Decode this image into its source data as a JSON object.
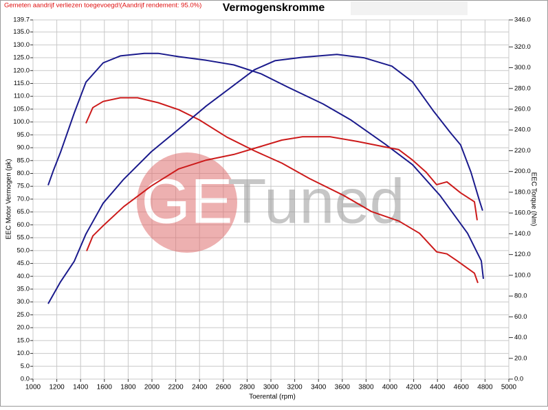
{
  "chart_data": {
    "type": "line",
    "note": "Gemeten aandrijf verliezen toegevoegd!(Aandrijf rendement: 95.0%)",
    "title": "Vermogenskromme",
    "x_label": "Toerental (rpm)",
    "y_label": "EEC Motor Vermogen (pk)",
    "y2_label": "EEC Torque (Nm)",
    "watermark": {
      "circle_text": "GE",
      "text": "Tuned"
    },
    "grid": true,
    "xlim": [
      1000,
      5000
    ],
    "xticks": [
      1000,
      1200,
      1400,
      1600,
      1800,
      2000,
      2200,
      2400,
      2600,
      2800,
      3000,
      3200,
      3400,
      3600,
      3800,
      4000,
      4200,
      4400,
      4600,
      4800,
      5000
    ],
    "ylim": [
      0,
      139.7
    ],
    "yticks": [
      {
        "value": 0,
        "label": "0.0"
      },
      {
        "value": 5,
        "label": "5.0"
      },
      {
        "value": 10,
        "label": "10.0"
      },
      {
        "value": 15,
        "label": "15.0"
      },
      {
        "value": 20,
        "label": "20.0"
      },
      {
        "value": 25,
        "label": "25.0"
      },
      {
        "value": 30,
        "label": "30.0"
      },
      {
        "value": 35,
        "label": "35.0"
      },
      {
        "value": 40,
        "label": "40.0"
      },
      {
        "value": 45,
        "label": "45.0"
      },
      {
        "value": 50,
        "label": "50.0"
      },
      {
        "value": 55,
        "label": "55.0"
      },
      {
        "value": 60,
        "label": "60.0"
      },
      {
        "value": 65,
        "label": "65.0"
      },
      {
        "value": 70,
        "label": "70.0"
      },
      {
        "value": 75,
        "label": "75.0"
      },
      {
        "value": 80,
        "label": "80.0"
      },
      {
        "value": 85,
        "label": "85.0"
      },
      {
        "value": 90,
        "label": "90.0"
      },
      {
        "value": 95,
        "label": "95.0"
      },
      {
        "value": 100,
        "label": "100.0"
      },
      {
        "value": 105,
        "label": "105.0"
      },
      {
        "value": 110,
        "label": "110.0"
      },
      {
        "value": 115,
        "label": "115.0"
      },
      {
        "value": 120,
        "label": "120.0"
      },
      {
        "value": 125,
        "label": "125.0"
      },
      {
        "value": 130,
        "label": "130.0"
      },
      {
        "value": 135,
        "label": "135.0"
      },
      139.7
    ],
    "y2lim": [
      0,
      346
    ],
    "y2ticks": [
      {
        "value": 0,
        "label": "0.0"
      },
      {
        "value": 20,
        "label": "20.0"
      },
      {
        "value": 40,
        "label": "40.0"
      },
      {
        "value": 60,
        "label": "60.0"
      },
      {
        "value": 80,
        "label": "80.0"
      },
      {
        "value": 100,
        "label": "100.0"
      },
      {
        "value": 120,
        "label": "120.0"
      },
      {
        "value": 140,
        "label": "140.0"
      },
      {
        "value": 160,
        "label": "160.0"
      },
      {
        "value": 180,
        "label": "180.0"
      },
      {
        "value": 200,
        "label": "200.0"
      },
      {
        "value": 220,
        "label": "220.0"
      },
      {
        "value": 240,
        "label": "240.0"
      },
      {
        "value": 260,
        "label": "260.0"
      },
      {
        "value": 280,
        "label": "280.0"
      },
      {
        "value": 300,
        "label": "300.0"
      },
      {
        "value": 320,
        "label": "320.0"
      },
      {
        "value": 346,
        "label": "346.0"
      }
    ],
    "series": [
      {
        "color": "#1a1a8c",
        "x": [
          1127,
          1173,
          1231,
          1347,
          1445,
          1590,
          1734,
          1936,
          2052,
          2225,
          2457,
          2688,
          2919,
          3150,
          3439,
          3671,
          3960,
          4191,
          4422,
          4653,
          4769,
          4786
        ],
        "values": [
          75.4,
          81.3,
          88.2,
          103.5,
          115.5,
          123,
          125.7,
          126.7,
          126.7,
          125.4,
          124,
          122.2,
          118.7,
          113.4,
          107,
          100.8,
          91.4,
          83.4,
          71.4,
          56.7,
          46,
          39
        ]
      },
      {
        "color": "#cc1a1a",
        "x": [
          1445,
          1503,
          1590,
          1734,
          1879,
          2052,
          2225,
          2399,
          2630,
          2861,
          3092,
          3324,
          3613,
          3844,
          4075,
          4249,
          4393,
          4480,
          4566,
          4711,
          4740
        ],
        "values": [
          99.5,
          105.6,
          108,
          109.4,
          109.4,
          107.5,
          104.8,
          100.8,
          94.1,
          88.8,
          84,
          78,
          71.4,
          65.2,
          61.5,
          56.7,
          49.5,
          48.7,
          46,
          41.2,
          37.4
        ]
      },
      {
        "color": "#1a1a8c",
        "axis": "y2",
        "x": [
          1127,
          1231,
          1347,
          1445,
          1590,
          1763,
          1994,
          2225,
          2457,
          2688,
          2861,
          3034,
          3266,
          3555,
          3786,
          4017,
          4191,
          4364,
          4508,
          4595,
          4682,
          4751,
          4780
        ],
        "values": [
          72.6,
          93.7,
          113.5,
          139.8,
          169.5,
          192.6,
          219,
          240.8,
          263.2,
          283,
          298,
          306.7,
          310,
          312.7,
          309.4,
          301.5,
          286.3,
          258.6,
          237.5,
          225.6,
          199.2,
          172.8,
          162.3
        ]
      },
      {
        "color": "#cc1a1a",
        "axis": "y2",
        "x": [
          1451,
          1503,
          1590,
          1763,
          1994,
          2225,
          2457,
          2688,
          2919,
          3092,
          3266,
          3497,
          3728,
          3960,
          4075,
          4191,
          4306,
          4393,
          4480,
          4595,
          4711,
          4734
        ],
        "values": [
          123.4,
          137.9,
          147.8,
          166.2,
          186,
          202.5,
          211,
          216.4,
          224.3,
          230.2,
          233.5,
          233.5,
          228.9,
          223.6,
          221,
          211,
          199.2,
          187.3,
          190,
          179.4,
          170.8,
          153
        ]
      }
    ]
  }
}
